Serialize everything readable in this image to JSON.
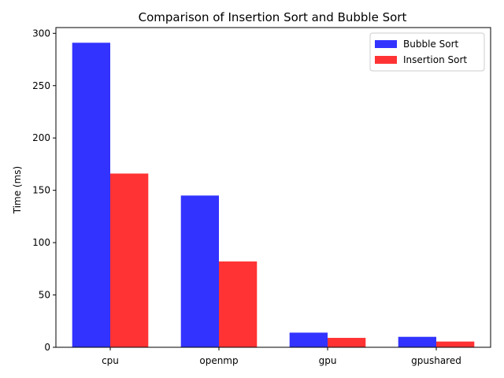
{
  "chart_data": {
    "type": "bar",
    "title": "Comparison of Insertion Sort and Bubble Sort",
    "xlabel": "",
    "ylabel": "Time (ms)",
    "categories": [
      "cpu",
      "openmp",
      "gpu",
      "gpushared"
    ],
    "series": [
      {
        "name": "Bubble Sort",
        "color": "#3333ff",
        "values": [
          291,
          145,
          14,
          10
        ]
      },
      {
        "name": "Insertion Sort",
        "color": "#ff3333",
        "values": [
          166,
          82,
          9,
          5.5
        ]
      }
    ],
    "ylim": [
      0,
      305.5
    ],
    "yticks": [
      0,
      50,
      100,
      150,
      200,
      250,
      300
    ],
    "grid": false,
    "legend_position": "top-right"
  }
}
